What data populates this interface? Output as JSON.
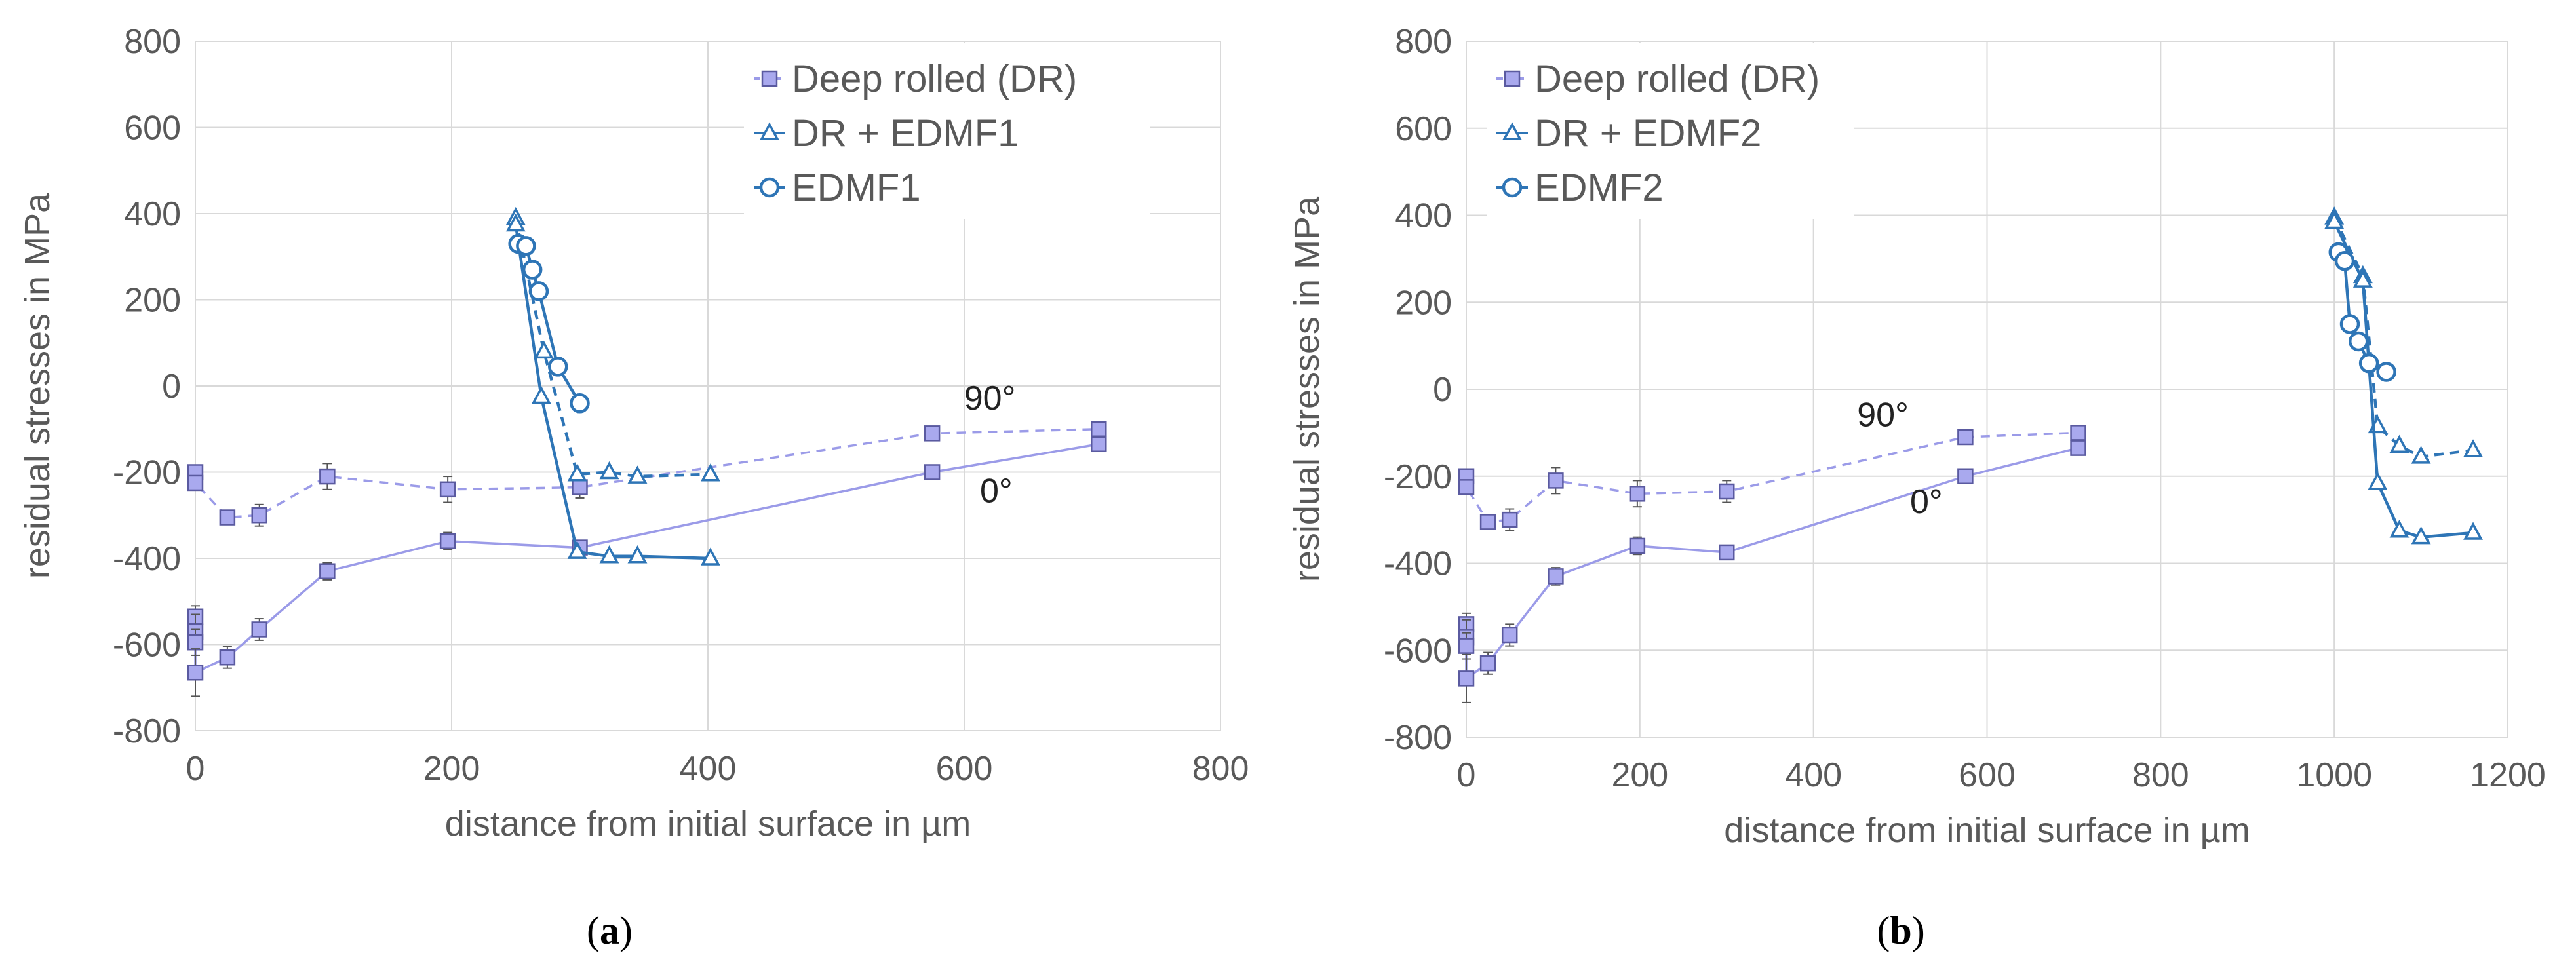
{
  "colors": {
    "dr": "#9b9be8",
    "dr_fill": "#a9a9ee",
    "edm": "#2e75b6",
    "grid": "#d9d9d9",
    "axis_text": "#595959"
  },
  "chart_data": [
    {
      "type": "line",
      "id": "a",
      "caption": {
        "open": "(",
        "letter": "a",
        "close": ")"
      },
      "xlabel": "distance from initial surface in µm",
      "ylabel": "residual stresses in MPa",
      "xlim": [
        0,
        800
      ],
      "ylim": [
        -800,
        800
      ],
      "xticks": [
        0,
        200,
        400,
        600,
        800
      ],
      "yticks": [
        -800,
        -600,
        -400,
        -200,
        0,
        200,
        400,
        600,
        800
      ],
      "xtick_labels": [
        "0",
        "200",
        "400",
        "600",
        "800"
      ],
      "ytick_labels": [
        "-800",
        "-600",
        "-400",
        "-200",
        "0",
        "200",
        "400",
        "600",
        "800"
      ],
      "legend": [
        {
          "label": "Deep rolled (DR)",
          "marker": "square",
          "color": "dr",
          "dash": "dashed"
        },
        {
          "label": "DR + EDMF1",
          "marker": "triangle",
          "color": "edm",
          "dash": "solid"
        },
        {
          "label": "EDMF1",
          "marker": "circle",
          "color": "edm",
          "dash": "solid"
        }
      ],
      "annotations": [
        {
          "text": "90°",
          "x": 620,
          "y": -55
        },
        {
          "text": "0°",
          "x": 625,
          "y": -270
        }
      ],
      "series": [
        {
          "name": "Deep rolled (DR) 90°",
          "marker": "square",
          "color": "dr",
          "dash": "dashed",
          "points": [
            [
              0,
              -200
            ],
            [
              0,
              -225
            ],
            [
              25,
              -305
            ],
            [
              50,
              -300
            ],
            [
              103,
              -210
            ],
            [
              197,
              -240
            ],
            [
              300,
              -235
            ],
            [
              575,
              -110
            ],
            [
              705,
              -100
            ]
          ],
          "errors": [
            15,
            15,
            15,
            25,
            30,
            30,
            25,
            10,
            10
          ]
        },
        {
          "name": "Deep rolled (DR) 0°",
          "marker": "square",
          "color": "dr",
          "dash": "solid",
          "points": [
            [
              0,
              -535
            ],
            [
              0,
              -570
            ],
            [
              0,
              -595
            ],
            [
              0,
              -665
            ],
            [
              25,
              -630
            ],
            [
              50,
              -565
            ],
            [
              103,
              -430
            ],
            [
              197,
              -360
            ],
            [
              300,
              -375
            ],
            [
              575,
              -200
            ],
            [
              705,
              -135
            ]
          ],
          "errors": [
            25,
            40,
            30,
            55,
            25,
            25,
            20,
            20,
            15,
            10,
            10
          ]
        },
        {
          "name": "DR + EDMF1 90°",
          "marker": "triangle",
          "color": "edm",
          "dash": "dashed",
          "points": [
            [
              250,
              390
            ],
            [
              272,
              80
            ],
            [
              298,
              -205
            ],
            [
              323,
              -200
            ],
            [
              345,
              -210
            ],
            [
              402,
              -205
            ]
          ]
        },
        {
          "name": "DR + EDMF1 0°",
          "marker": "triangle",
          "color": "edm",
          "dash": "solid",
          "points": [
            [
              250,
              375
            ],
            [
              270,
              -25
            ],
            [
              298,
              -385
            ],
            [
              323,
              -395
            ],
            [
              345,
              -395
            ],
            [
              402,
              -400
            ]
          ]
        },
        {
          "name": "EDMF1",
          "marker": "circle",
          "color": "edm",
          "dash": "solid",
          "points": [
            [
              252,
              330
            ],
            [
              258,
              325
            ],
            [
              263,
              270
            ],
            [
              268,
              220
            ],
            [
              283,
              45
            ],
            [
              300,
              -40
            ]
          ]
        }
      ]
    },
    {
      "type": "line",
      "id": "b",
      "caption": {
        "open": "(",
        "letter": "b",
        "close": ")"
      },
      "xlabel": "distance from initial surface in µm",
      "ylabel": "residual stresses in MPa",
      "xlim": [
        0,
        1200
      ],
      "ylim": [
        -800,
        800
      ],
      "xticks": [
        0,
        200,
        400,
        600,
        800,
        1000,
        1200
      ],
      "yticks": [
        -800,
        -600,
        -400,
        -200,
        0,
        200,
        400,
        600,
        800
      ],
      "xtick_labels": [
        "0",
        "200",
        "400",
        "600",
        "800",
        "1000",
        "1200"
      ],
      "ytick_labels": [
        "-800",
        "-600",
        "-400",
        "-200",
        "0",
        "200",
        "400",
        "600",
        "800"
      ],
      "legend": [
        {
          "label": "Deep rolled (DR)",
          "marker": "square",
          "color": "dr",
          "dash": "dashed"
        },
        {
          "label": "DR + EDMF2",
          "marker": "triangle",
          "color": "edm",
          "dash": "solid"
        },
        {
          "label": "EDMF2",
          "marker": "circle",
          "color": "edm",
          "dash": "solid"
        }
      ],
      "annotations": [
        {
          "text": "90°",
          "x": 480,
          "y": -85
        },
        {
          "text": "0°",
          "x": 530,
          "y": -285
        }
      ],
      "series": [
        {
          "name": "Deep rolled (DR) 90°",
          "marker": "square",
          "color": "dr",
          "dash": "dashed",
          "points": [
            [
              0,
              -200
            ],
            [
              0,
              -225
            ],
            [
              25,
              -305
            ],
            [
              50,
              -300
            ],
            [
              103,
              -210
            ],
            [
              197,
              -240
            ],
            [
              300,
              -235
            ],
            [
              575,
              -110
            ],
            [
              705,
              -100
            ]
          ],
          "errors": [
            15,
            15,
            15,
            25,
            30,
            30,
            25,
            10,
            10
          ]
        },
        {
          "name": "Deep rolled (DR) 0°",
          "marker": "square",
          "color": "dr",
          "dash": "solid",
          "points": [
            [
              0,
              -540
            ],
            [
              0,
              -570
            ],
            [
              0,
              -590
            ],
            [
              0,
              -665
            ],
            [
              25,
              -630
            ],
            [
              50,
              -565
            ],
            [
              103,
              -430
            ],
            [
              197,
              -360
            ],
            [
              300,
              -375
            ],
            [
              575,
              -200
            ],
            [
              705,
              -135
            ]
          ],
          "errors": [
            25,
            40,
            30,
            55,
            25,
            25,
            20,
            20,
            15,
            10,
            10
          ]
        },
        {
          "name": "DR + EDMF2 90°",
          "marker": "triangle",
          "color": "edm",
          "dash": "dashed",
          "points": [
            [
              1000,
              395
            ],
            [
              1033,
              260
            ],
            [
              1050,
              -85
            ],
            [
              1075,
              -130
            ],
            [
              1100,
              -155
            ],
            [
              1160,
              -140
            ]
          ]
        },
        {
          "name": "DR + EDMF2 0°",
          "marker": "triangle",
          "color": "edm",
          "dash": "solid",
          "points": [
            [
              1000,
              385
            ],
            [
              1033,
              250
            ],
            [
              1050,
              -215
            ],
            [
              1075,
              -325
            ],
            [
              1100,
              -340
            ],
            [
              1160,
              -330
            ]
          ]
        },
        {
          "name": "EDMF2",
          "marker": "circle",
          "color": "edm",
          "dash": "solid",
          "points": [
            [
              1005,
              315
            ],
            [
              1012,
              295
            ],
            [
              1018,
              150
            ],
            [
              1028,
              110
            ],
            [
              1040,
              60
            ],
            [
              1060,
              40
            ]
          ]
        }
      ]
    }
  ]
}
